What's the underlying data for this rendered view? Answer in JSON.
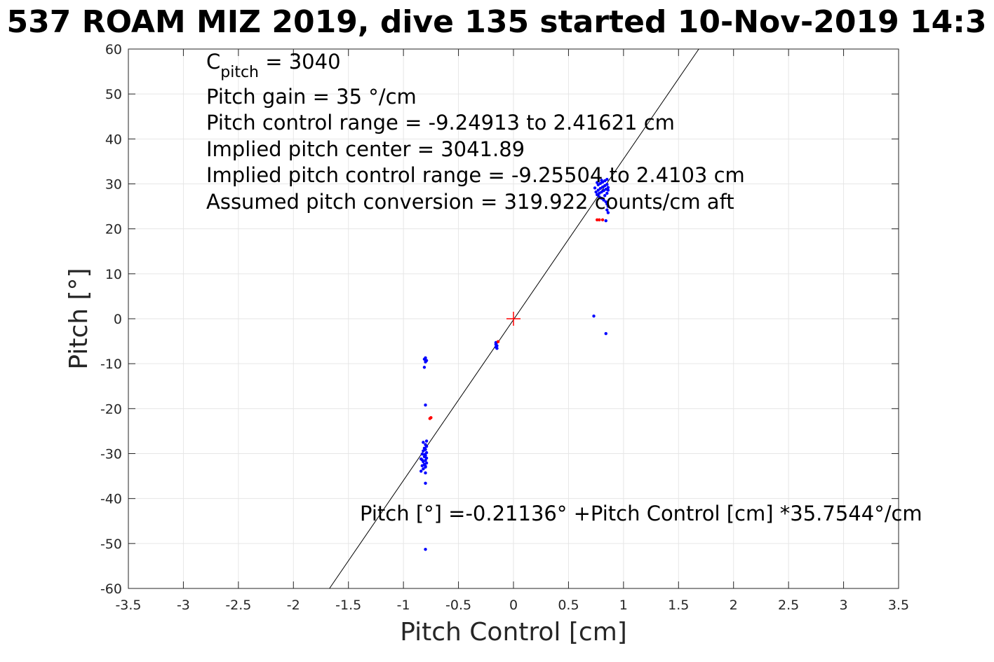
{
  "chart_data": {
    "type": "scatter",
    "title": "537 ROAM MIZ 2019, dive 135 started 10-Nov-2019 14:3",
    "xlabel": "Pitch Control [cm]",
    "ylabel": "Pitch [°]",
    "xlim": [
      -3.5,
      3.5
    ],
    "ylim": [
      -60,
      60
    ],
    "xticks": [
      -3.5,
      -3,
      -2.5,
      -2,
      -1.5,
      -1,
      -0.5,
      0,
      0.5,
      1,
      1.5,
      2,
      2.5,
      3,
      3.5
    ],
    "yticks": [
      -60,
      -50,
      -40,
      -30,
      -20,
      -10,
      0,
      10,
      20,
      30,
      40,
      50,
      60
    ],
    "grid": true,
    "colors": {
      "good": "#0000ff",
      "bad": "#ff0000",
      "fit": "#000000",
      "center": "#ff0000",
      "grid": "#e6e6e6",
      "axis": "#262626"
    },
    "annotations": {
      "c_pitch_main": "C",
      "c_pitch_sub": "pitch",
      "c_pitch_rest": " = 3040",
      "pitch_gain": "Pitch gain = 35 °/cm",
      "control_range": "Pitch control range = -9.24913 to 2.41621 cm",
      "implied_center": "Implied pitch center = 3041.89",
      "implied_range": "Implied pitch control range = -9.25504 to 2.4103 cm",
      "conversion": "Assumed pitch conversion = 319.922 counts/cm aft",
      "fit_equation": "Pitch [°] =-0.21136° +Pitch Control [cm] *35.7544°/cm"
    },
    "fit": {
      "intercept": -0.21136,
      "slope": 35.7544
    },
    "center_marker": {
      "x": 0,
      "y": 0
    },
    "series": [
      {
        "name": "",
        "color": "#0000ff",
        "points": [
          [
            -0.8,
            -8.7
          ],
          [
            -0.81,
            -9.0
          ],
          [
            -0.79,
            -9.3
          ],
          [
            -0.8,
            -9.6
          ],
          [
            -0.81,
            -10.8
          ],
          [
            -0.8,
            -19.2
          ],
          [
            -0.82,
            -27.5
          ],
          [
            -0.8,
            -28.0
          ],
          [
            -0.79,
            -28.4
          ],
          [
            -0.81,
            -28.8
          ],
          [
            -0.8,
            -29.1
          ],
          [
            -0.82,
            -29.4
          ],
          [
            -0.79,
            -29.8
          ],
          [
            -0.83,
            -30.1
          ],
          [
            -0.8,
            -30.4
          ],
          [
            -0.81,
            -30.7
          ],
          [
            -0.79,
            -31.0
          ],
          [
            -0.84,
            -31.2
          ],
          [
            -0.8,
            -31.5
          ],
          [
            -0.82,
            -31.8
          ],
          [
            -0.79,
            -32.1
          ],
          [
            -0.81,
            -32.4
          ],
          [
            -0.83,
            -32.7
          ],
          [
            -0.8,
            -33.0
          ],
          [
            -0.82,
            -33.4
          ],
          [
            -0.84,
            -33.9
          ],
          [
            -0.8,
            -34.3
          ],
          [
            -0.79,
            -27.2
          ],
          [
            -0.81,
            -30.2
          ],
          [
            -0.83,
            -31.4
          ],
          [
            -0.8,
            -32.8
          ],
          [
            -0.8,
            -36.6
          ],
          [
            -0.8,
            -51.3
          ],
          [
            -0.16,
            -5.3
          ],
          [
            -0.16,
            -5.7
          ],
          [
            -0.15,
            -6.0
          ],
          [
            -0.16,
            -6.3
          ],
          [
            -0.15,
            -6.6
          ],
          [
            0.73,
            0.6
          ],
          [
            0.84,
            -3.3
          ],
          [
            0.84,
            21.8
          ],
          [
            0.75,
            28.2
          ],
          [
            0.77,
            28.6
          ],
          [
            0.79,
            29.0
          ],
          [
            0.81,
            29.3
          ],
          [
            0.83,
            29.6
          ],
          [
            0.85,
            29.9
          ],
          [
            0.76,
            27.6
          ],
          [
            0.78,
            27.9
          ],
          [
            0.8,
            28.2
          ],
          [
            0.82,
            28.5
          ],
          [
            0.84,
            28.8
          ],
          [
            0.86,
            29.2
          ],
          [
            0.77,
            29.8
          ],
          [
            0.79,
            30.1
          ],
          [
            0.81,
            30.4
          ],
          [
            0.83,
            30.7
          ],
          [
            0.85,
            31.0
          ],
          [
            0.8,
            26.8
          ],
          [
            0.82,
            26.4
          ],
          [
            0.84,
            26.0
          ],
          [
            0.85,
            25.5
          ],
          [
            0.86,
            25.0
          ],
          [
            0.85,
            24.2
          ],
          [
            0.86,
            23.6
          ],
          [
            0.74,
            29.1
          ],
          [
            0.76,
            30.3
          ],
          [
            0.78,
            27.1
          ],
          [
            0.8,
            30.8
          ],
          [
            0.83,
            27.4
          ],
          [
            0.85,
            27.9
          ],
          [
            0.86,
            28.6
          ]
        ]
      },
      {
        "name": "",
        "color": "#ff0000",
        "points": [
          [
            -0.76,
            -22.2
          ],
          [
            -0.75,
            -22.0
          ],
          [
            -0.14,
            -5.1
          ],
          [
            0.76,
            22.0
          ],
          [
            0.78,
            22.0
          ],
          [
            0.81,
            22.0
          ]
        ]
      }
    ]
  }
}
